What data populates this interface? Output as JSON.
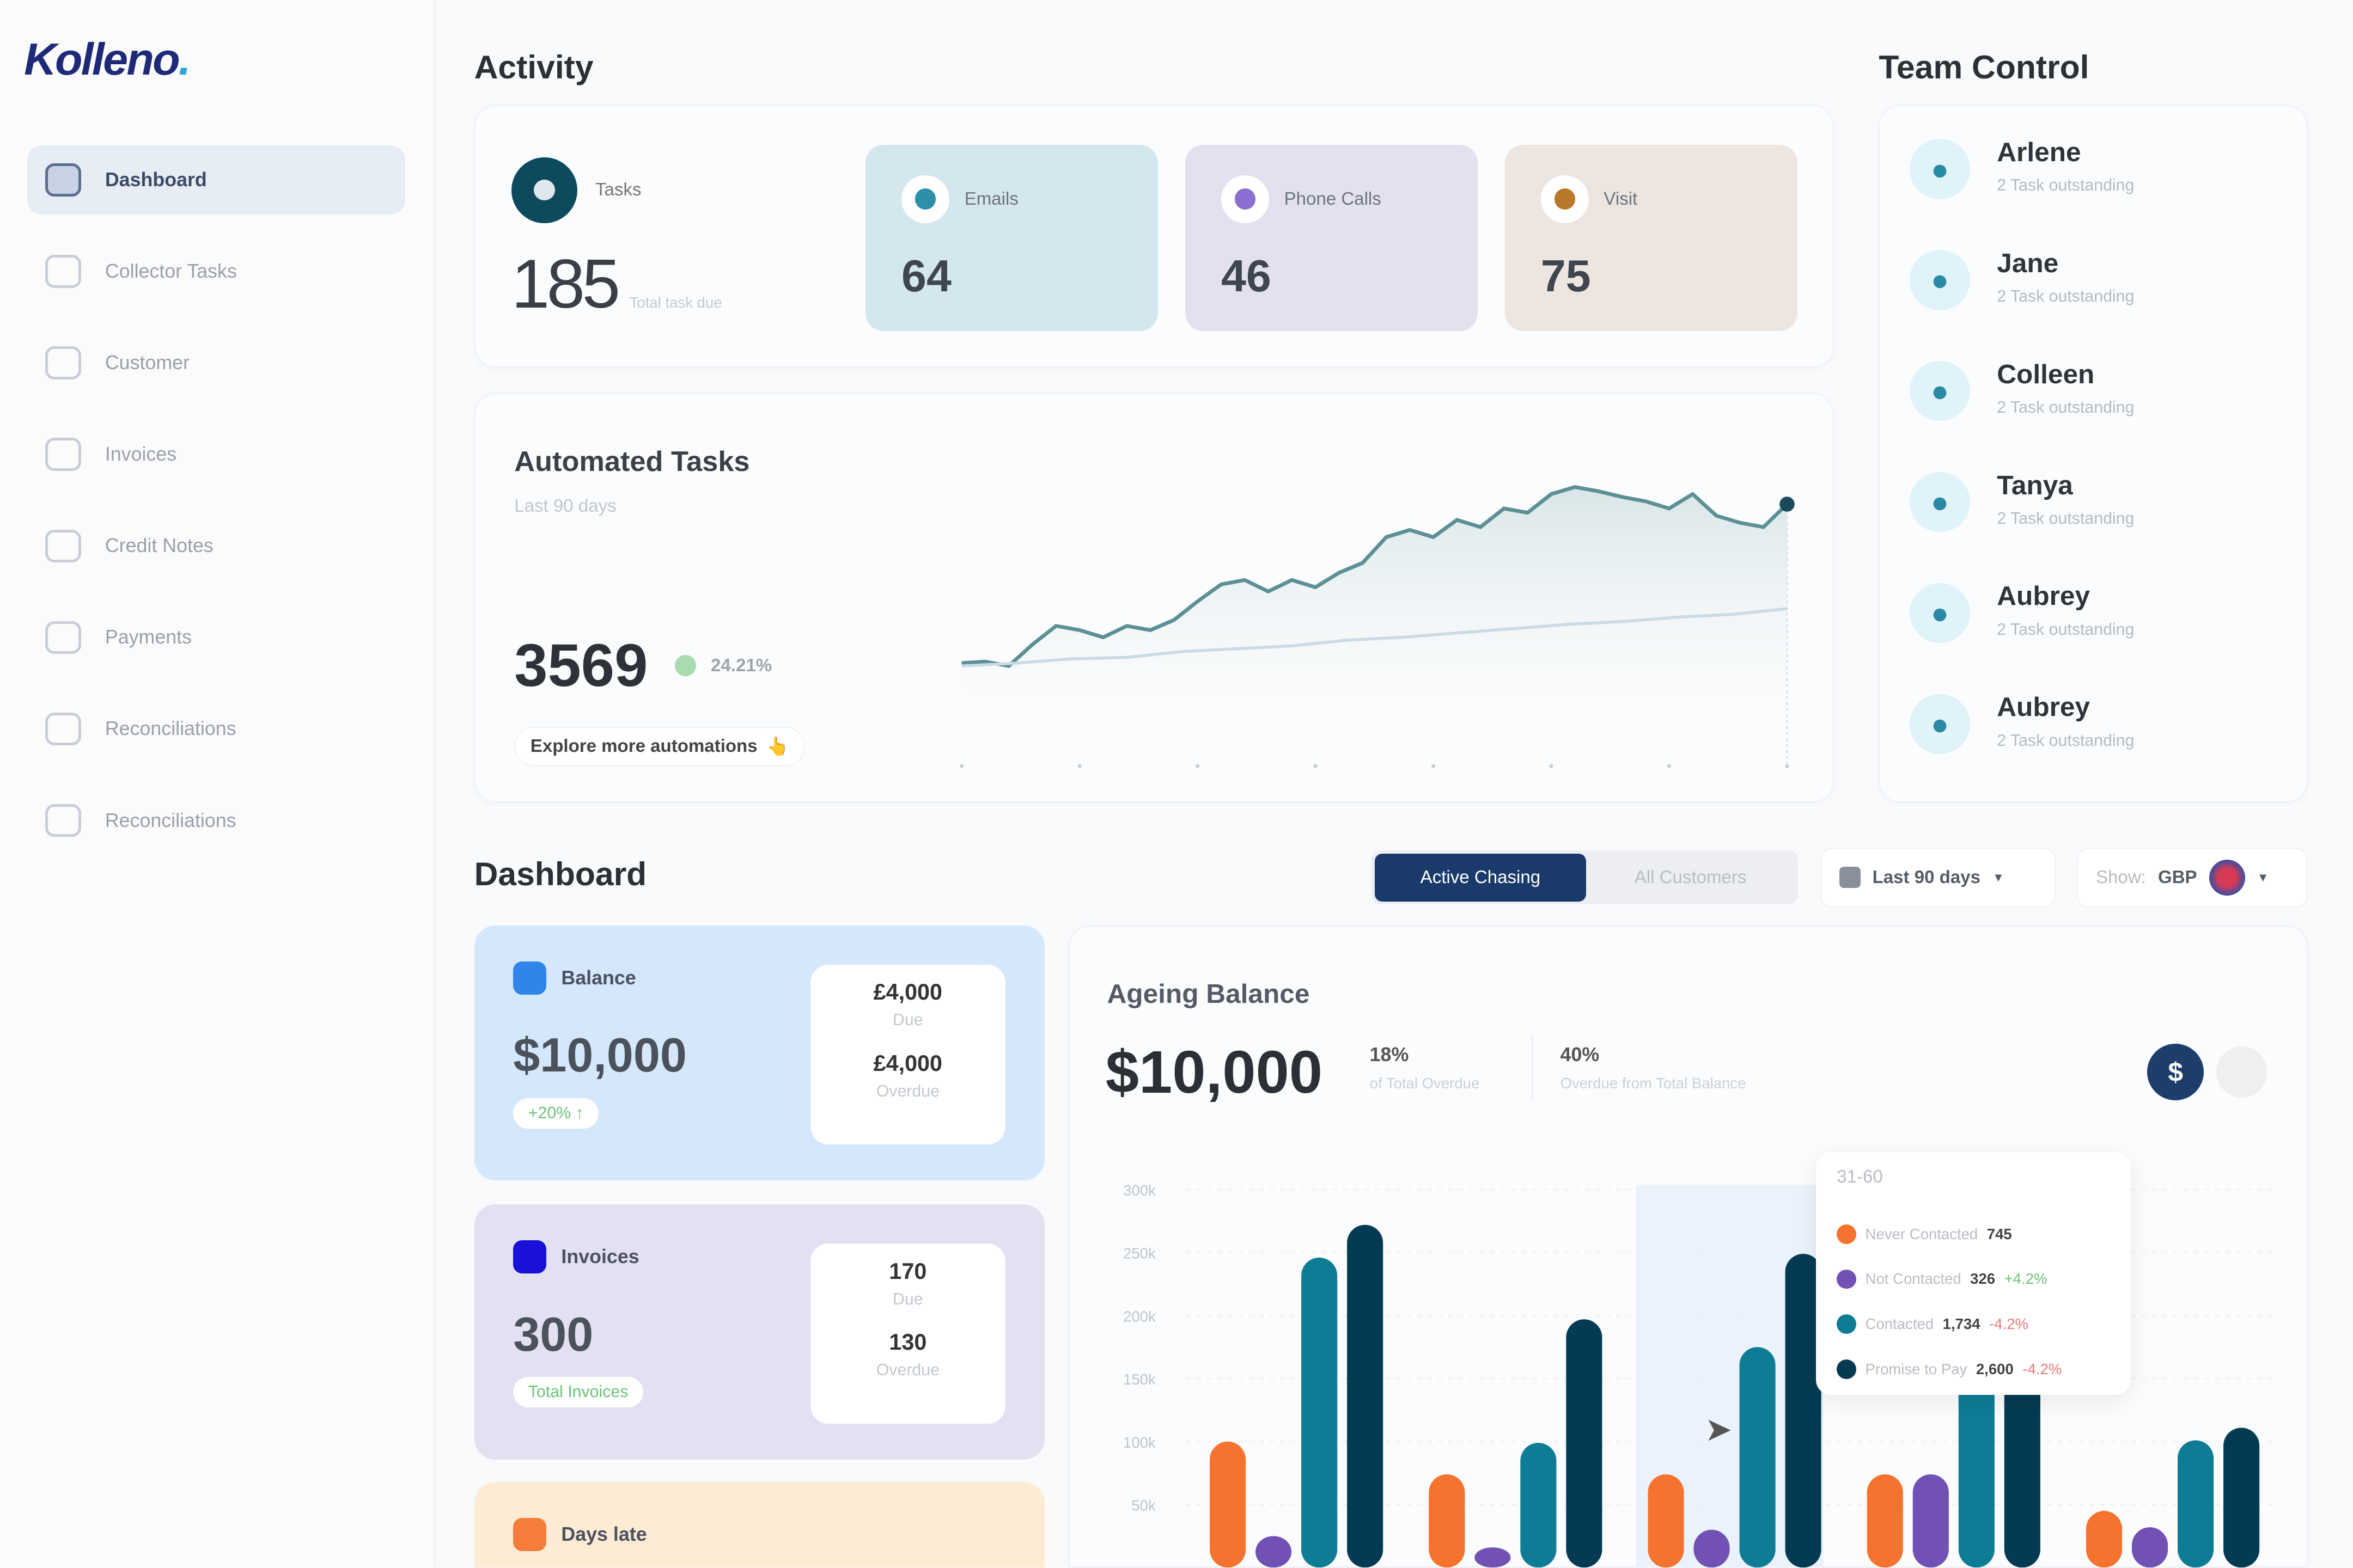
{
  "app": {
    "logo": "Kolleno",
    "logo_dot": "."
  },
  "sidebar": {
    "items": [
      {
        "label": "Dashboard",
        "icon": "dashboard-icon",
        "active": true
      },
      {
        "label": "Collector Tasks",
        "icon": "tasks-icon"
      },
      {
        "label": "Customer",
        "icon": "customer-icon"
      },
      {
        "label": "Invoices",
        "icon": "invoice-icon"
      },
      {
        "label": "Credit Notes",
        "icon": "credit-note-icon"
      },
      {
        "label": "Payments",
        "icon": "payments-icon"
      },
      {
        "label": "Reconciliations",
        "icon": "reconciliation-icon"
      },
      {
        "label": "Reconciliations",
        "icon": "reconciliation-icon"
      }
    ]
  },
  "activity": {
    "title": "Activity",
    "tasks": {
      "label": "Tasks",
      "value": "185",
      "sub": "Total task due"
    },
    "stats": [
      {
        "label": "Emails",
        "value": "64",
        "bg": "#d5e7ee",
        "dot": "#2e8fab"
      },
      {
        "label": "Phone Calls",
        "value": "46",
        "bg": "#e3e1f0",
        "dot": "#8a6fd0"
      },
      {
        "label": "Visit",
        "value": "75",
        "bg": "#ede5df",
        "dot": "#b8772a"
      }
    ]
  },
  "automated": {
    "title": "Automated Tasks",
    "subtitle": "Last 90 days",
    "value": "3569",
    "change": "24.21%",
    "cta": "Explore more automations",
    "cta_emoji": "👆"
  },
  "team": {
    "title": "Team Control",
    "members": [
      {
        "name": "Arlene",
        "sub": "2 Task outstanding"
      },
      {
        "name": "Jane",
        "sub": "2 Task outstanding"
      },
      {
        "name": "Colleen",
        "sub": "2 Task outstanding"
      },
      {
        "name": "Tanya",
        "sub": "2 Task outstanding"
      },
      {
        "name": "Aubrey",
        "sub": "2 Task outstanding"
      },
      {
        "name": "Aubrey",
        "sub": "2 Task outstanding"
      }
    ]
  },
  "dashboard": {
    "title": "Dashboard",
    "toggle": [
      "Active Chasing",
      "All Customers"
    ],
    "period": "Last 90 days",
    "currency_label": "Show:",
    "currency": "GBP",
    "cards": [
      {
        "label": "Balance",
        "value": "$10,000",
        "pill": "+20% ↑",
        "bg": "#d4e7fb",
        "icon": "#2f86e8",
        "box": [
          {
            "v": "£4,000",
            "s": "Due"
          },
          {
            "v": "£4,000",
            "s": "Overdue"
          }
        ]
      },
      {
        "label": "Invoices",
        "value": "300",
        "pill": "Total Invoices",
        "bg": "#e3e1f1",
        "icon": "#1a10d8",
        "box": [
          {
            "v": "170",
            "s": "Due"
          },
          {
            "v": "130",
            "s": "Overdue"
          }
        ]
      },
      {
        "label": "Days late",
        "bg": "#fdebd3",
        "icon": "#f47d3c"
      }
    ],
    "ageing": {
      "title": "Ageing Balance",
      "value": "$10,000",
      "pct1": "18%",
      "pct1_label": "of Total Overdue",
      "pct2": "40%",
      "pct2_label": "Overdue from Total Balance",
      "currency_icon": "$"
    },
    "tooltip": {
      "title": "31-60",
      "rows": [
        {
          "name": "Never Contacted",
          "value": "745",
          "change": ""
        },
        {
          "name": "Not Contacted",
          "value": "326",
          "change": "+4.2%"
        },
        {
          "name": "Contacted",
          "value": "1,734",
          "change": "-4.2%"
        },
        {
          "name": "Promise to Pay",
          "value": "2,600",
          "change": "-4.2%"
        }
      ]
    }
  },
  "chart_data": [
    {
      "type": "line",
      "title": "Automated Tasks",
      "ylim": [
        0,
        220
      ],
      "grid": false,
      "series": [
        {
          "values": [
            72,
            73,
            70,
            85,
            98,
            95,
            90,
            98,
            95,
            102,
            115,
            127,
            130,
            122,
            130,
            125,
            135,
            142,
            160,
            165,
            160,
            172,
            167,
            180,
            177,
            190,
            195,
            192,
            188,
            185,
            180,
            190,
            175,
            170,
            167,
            183
          ],
          "color": "#5c8f96"
        },
        {
          "values": [
            70,
            72,
            75,
            76,
            80,
            82,
            84,
            88,
            90,
            93,
            96,
            99,
            101,
            104,
            106,
            110
          ],
          "color": "#c9dbe6"
        }
      ]
    },
    {
      "type": "bar",
      "title": "Ageing Balance",
      "yticks": [
        "300k",
        "250k",
        "200k",
        "150k",
        "100k",
        "50k"
      ],
      "ylim": [
        0,
        300000
      ],
      "grid": true,
      "highlight_index": 2,
      "series": [
        {
          "name": "Never Contacted",
          "color": "#f5732f",
          "values": [
            100000,
            74000,
            74000,
            74000,
            45000
          ]
        },
        {
          "name": "Not Contacted",
          "color": "#7151b3",
          "values": [
            25000,
            16000,
            30000,
            74000,
            32000
          ]
        },
        {
          "name": "Contacted",
          "color": "#0f7c96",
          "values": [
            246000,
            99000,
            175000,
            160000,
            101000
          ]
        },
        {
          "name": "Promise to Pay",
          "color": "#053b52",
          "values": [
            272000,
            197000,
            249000,
            150000,
            111000
          ]
        }
      ]
    }
  ]
}
